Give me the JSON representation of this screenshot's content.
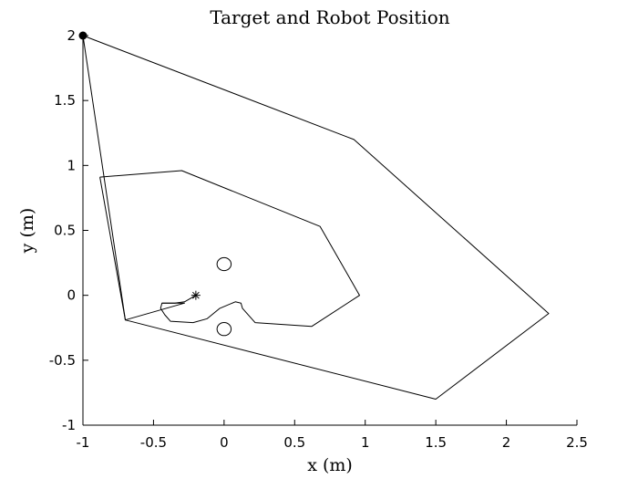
{
  "chart_data": {
    "type": "line",
    "title": "Target and Robot Position",
    "xlabel": "x (m)",
    "ylabel": "y (m)",
    "xlim": [
      -1,
      2.5
    ],
    "ylim": [
      -1,
      2
    ],
    "xticks": [
      -1,
      -0.5,
      0,
      0.5,
      1,
      1.5,
      2,
      2.5
    ],
    "xtick_labels": [
      "-1",
      "-0.5",
      "0",
      "0.5",
      "1",
      "1.5",
      "2",
      "2.5"
    ],
    "yticks": [
      -1,
      -0.5,
      0,
      0.5,
      1,
      1.5,
      2
    ],
    "ytick_labels": [
      "-1",
      "-0.5",
      "0",
      "0.5",
      "1",
      "1.5",
      "2"
    ],
    "grid": false,
    "box": "left-bottom axes only",
    "color": "#000000",
    "series": [
      {
        "kind": "outer-boundary",
        "closed": true,
        "points": [
          [
            -1,
            2
          ],
          [
            0.92,
            1.2
          ],
          [
            2.3,
            -0.14
          ],
          [
            1.5,
            -0.8
          ],
          [
            -0.7,
            -0.19
          ],
          [
            -1,
            2
          ]
        ]
      },
      {
        "kind": "inner-boundary",
        "closed": true,
        "points": [
          [
            -0.88,
            0.91
          ],
          [
            -0.3,
            0.96
          ],
          [
            0.68,
            0.53
          ],
          [
            0.96,
            0.0
          ],
          [
            0.62,
            -0.24
          ],
          [
            0.22,
            -0.21
          ],
          [
            0.13,
            -0.1
          ],
          [
            0.12,
            -0.06
          ],
          [
            0.08,
            -0.05
          ],
          [
            -0.03,
            -0.1
          ],
          [
            -0.12,
            -0.18
          ],
          [
            -0.22,
            -0.21
          ],
          [
            -0.38,
            -0.2
          ],
          [
            -0.42,
            -0.15
          ],
          [
            -0.45,
            -0.1
          ],
          [
            -0.44,
            -0.06
          ],
          [
            -0.28,
            -0.06
          ],
          [
            -0.7,
            -0.19
          ],
          [
            -0.88,
            0.91
          ]
        ]
      },
      {
        "kind": "robot-path",
        "closed": false,
        "points": [
          [
            -0.44,
            -0.06
          ],
          [
            -0.35,
            -0.06
          ],
          [
            -0.28,
            -0.05
          ],
          [
            -0.2,
            0.0
          ]
        ]
      },
      {
        "kind": "obstacle",
        "shape": "circle",
        "center": [
          0.0,
          0.24
        ],
        "radius": 0.05
      },
      {
        "kind": "obstacle",
        "shape": "circle",
        "center": [
          0.0,
          -0.26
        ],
        "radius": 0.05
      },
      {
        "kind": "target",
        "marker": "asterisk",
        "point": [
          -0.2,
          0.0
        ]
      },
      {
        "kind": "robot",
        "marker": "filled-dot",
        "point": [
          -1,
          2
        ]
      }
    ]
  }
}
